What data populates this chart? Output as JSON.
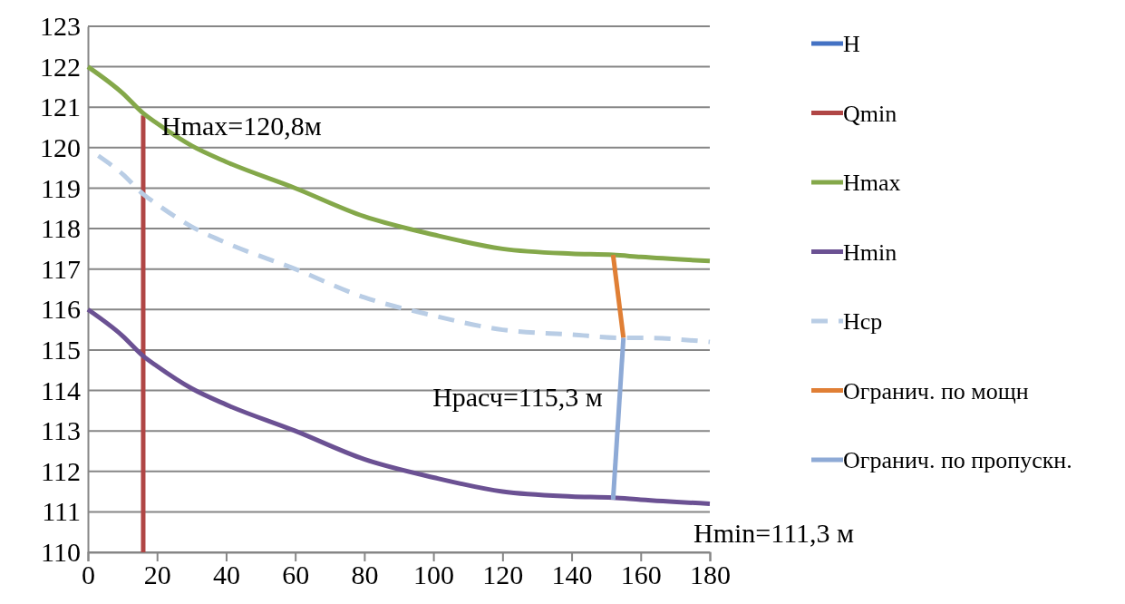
{
  "chart_data": {
    "type": "line",
    "xlim": [
      0,
      180
    ],
    "xticks": [
      0,
      20,
      40,
      60,
      80,
      100,
      120,
      140,
      160,
      180
    ],
    "ylim": [
      110,
      123
    ],
    "yticks": [
      110,
      111,
      112,
      113,
      114,
      115,
      116,
      117,
      118,
      119,
      120,
      121,
      122,
      123
    ],
    "grid": "y",
    "legend": "right",
    "marker": "none",
    "series": [
      {
        "name": "H",
        "color": "#4472c4"
      },
      {
        "name": "Qmin",
        "color": "#b04645",
        "x": [
          16,
          16
        ],
        "values": [
          110,
          120.8
        ]
      },
      {
        "name": "Hmax",
        "color": "#84a84a",
        "x": [
          0,
          10,
          16,
          20,
          30,
          40,
          60,
          80,
          100,
          120,
          140,
          152,
          160,
          180
        ],
        "values": [
          122,
          121.35,
          120.85,
          120.6,
          120.05,
          119.65,
          119.0,
          118.3,
          117.85,
          117.5,
          117.38,
          117.35,
          117.3,
          117.2
        ]
      },
      {
        "name": "Hmin",
        "color": "#6b5193",
        "x": [
          0,
          10,
          16,
          20,
          30,
          40,
          60,
          80,
          100,
          120,
          140,
          152,
          160,
          180
        ],
        "values": [
          116,
          115.35,
          114.85,
          114.6,
          114.05,
          113.65,
          113.0,
          112.3,
          111.85,
          111.5,
          111.38,
          111.35,
          111.3,
          111.2
        ]
      },
      {
        "name": "Hср",
        "color": "#b9cde5",
        "line_style": "dashed",
        "x": [
          3,
          10,
          16,
          20,
          30,
          40,
          60,
          80,
          100,
          120,
          140,
          155,
          160,
          180
        ],
        "values": [
          119.8,
          119.35,
          118.85,
          118.6,
          118.05,
          117.65,
          117.0,
          116.3,
          115.85,
          115.5,
          115.38,
          115.3,
          115.3,
          115.2
        ]
      },
      {
        "name": "Огранич. по мощн",
        "color": "#e07f35",
        "x": [
          152,
          155
        ],
        "values": [
          117.35,
          115.3
        ]
      },
      {
        "name": "Огранич. по пропускн.",
        "color": "#8eaad6",
        "x": [
          155,
          152
        ],
        "values": [
          115.3,
          111.3
        ]
      }
    ],
    "annotations": [
      {
        "text": "Hmax=120,8м",
        "x": 16,
        "y": 120.8
      },
      {
        "text": "Hрасч=115,3 м",
        "x": 155,
        "y": 115.3
      },
      "Hmin=111,3 м"
    ]
  }
}
